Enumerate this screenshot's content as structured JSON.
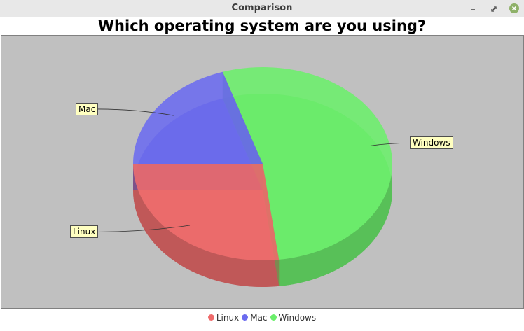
{
  "window": {
    "title": "Comparison"
  },
  "colors": {
    "Linux": "#ef6b6b",
    "Mac": "#6b6bef",
    "Windows": "#6bef6b",
    "plot_bg": "#c0c0c0"
  },
  "chart_data": {
    "type": "pie",
    "style": "3d",
    "title": "Which operating system are you using?",
    "categories": [
      "Linux",
      "Mac",
      "Windows"
    ],
    "values": [
      27,
      20,
      53
    ],
    "legend": "bottom"
  }
}
